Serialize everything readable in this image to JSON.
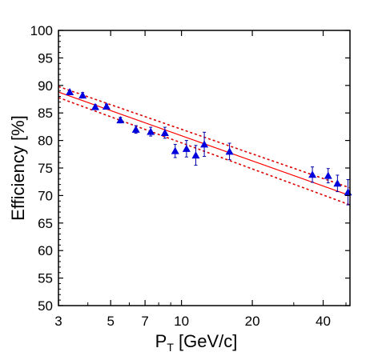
{
  "chart_data": {
    "type": "scatter",
    "title": "",
    "xlabel": {
      "main": "P",
      "sub": "T",
      "rest": " [GeV/c]"
    },
    "ylabel": "Efficiency [%]",
    "xscale": "log",
    "xlim": [
      3,
      52
    ],
    "ylim": [
      50,
      100
    ],
    "xticks": [
      3,
      5,
      7,
      10,
      20,
      40
    ],
    "yticks": [
      50,
      55,
      60,
      65,
      70,
      75,
      80,
      85,
      90,
      95,
      100
    ],
    "grid": false,
    "legend": "none",
    "colors": {
      "points": "#0000dd",
      "errorbars": "#0000aa",
      "fit": "#ff0000",
      "band": "#dd0000",
      "axis": "#000000"
    },
    "series": [
      {
        "marker": "triangle",
        "x": [
          3.35,
          3.8,
          4.3,
          4.8,
          5.5,
          6.4,
          7.4,
          8.5,
          9.4,
          10.5,
          11.5,
          12.5,
          16,
          36,
          42,
          46,
          51
        ],
        "y": [
          88.8,
          88.2,
          86.1,
          86.2,
          83.7,
          82.0,
          81.6,
          81.4,
          78.1,
          78.5,
          77.3,
          79.3,
          78.0,
          73.8,
          73.6,
          72.2,
          70.6
        ],
        "err_low": [
          0.3,
          0.5,
          0.4,
          0.4,
          0.5,
          0.7,
          0.8,
          1.0,
          1.2,
          1.5,
          1.8,
          2.2,
          1.5,
          1.4,
          1.3,
          1.5,
          2.3
        ],
        "err_high": [
          0.3,
          0.5,
          0.4,
          0.4,
          0.5,
          0.7,
          0.8,
          1.0,
          1.2,
          1.5,
          1.8,
          2.2,
          1.5,
          1.4,
          1.3,
          1.5,
          2.3
        ]
      }
    ],
    "fit": {
      "x": [
        3,
        52
      ],
      "y": [
        88.8,
        70.0
      ]
    },
    "fit_band": {
      "upper": {
        "x": [
          3,
          52
        ],
        "y": [
          89.8,
          71.4
        ]
      },
      "lower": {
        "x": [
          3,
          52
        ],
        "y": [
          87.8,
          68.3
        ]
      }
    }
  }
}
